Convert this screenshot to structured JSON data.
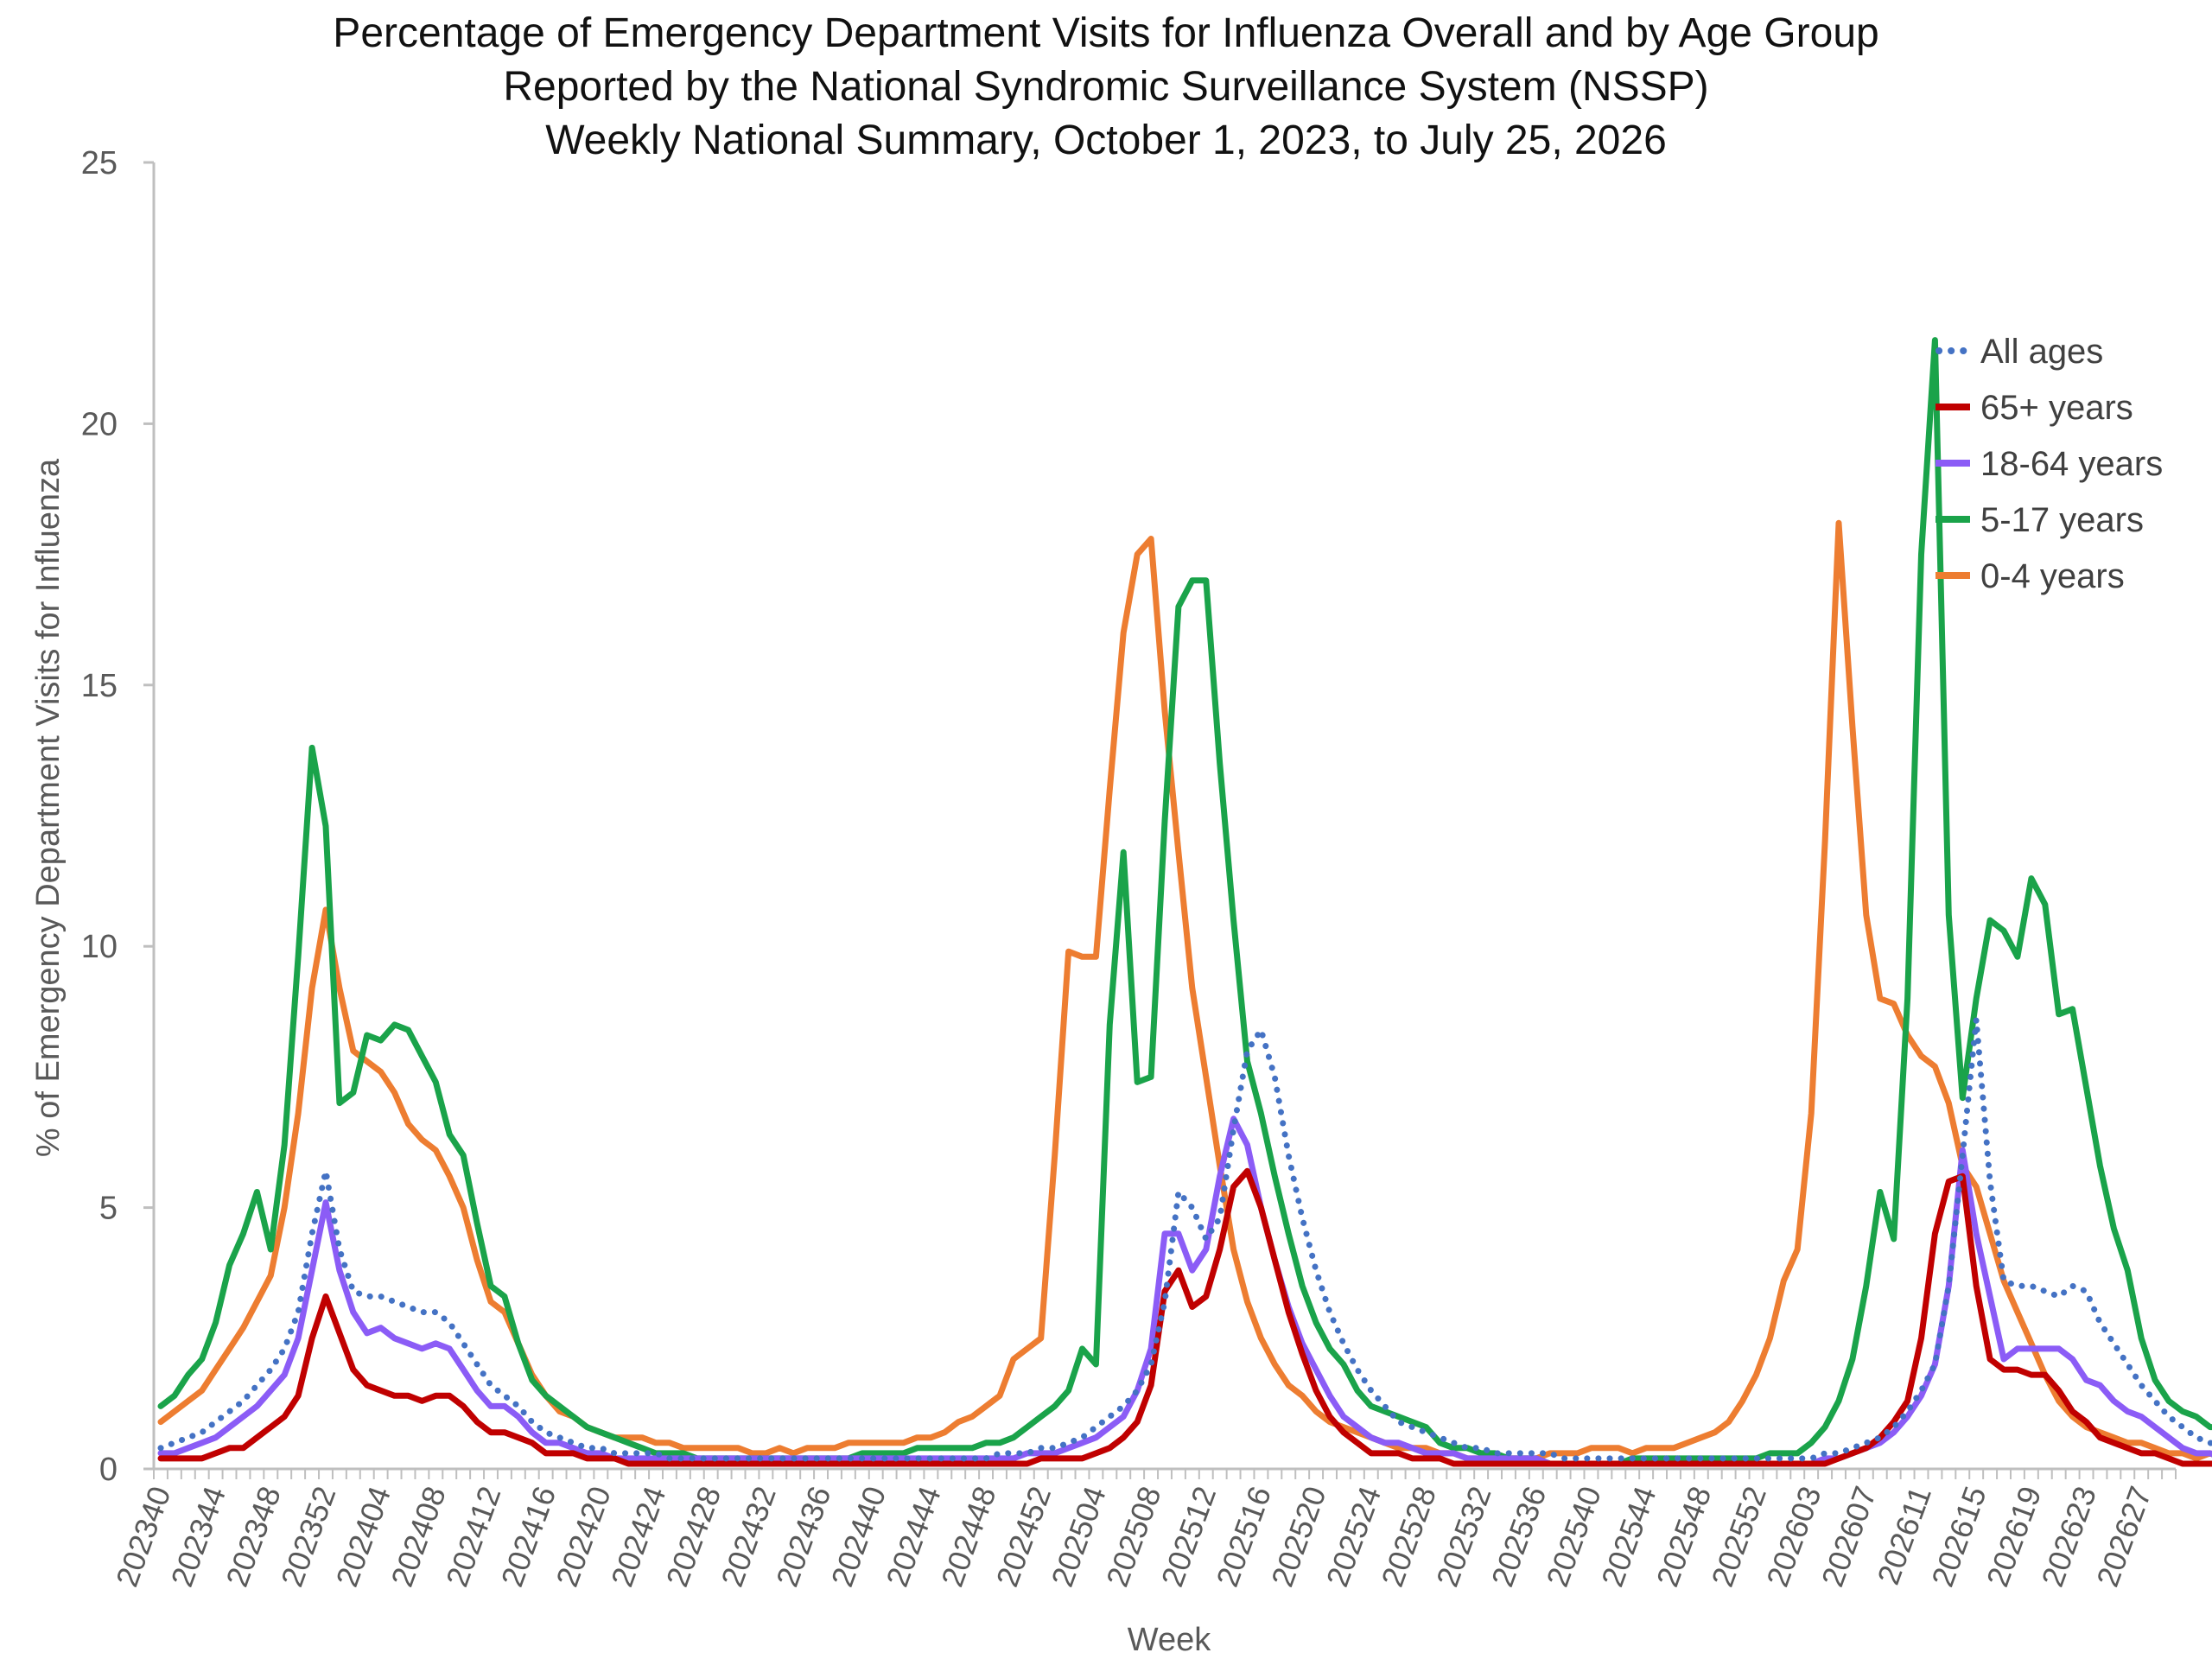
{
  "chart_data": {
    "type": "line",
    "title": [
      "Percentage of Emergency Department Visits for Influenza Overall and by Age Group",
      "Reported by the National Syndromic Surveillance System (NSSP)",
      "Weekly National Summary, October 1, 2023, to July 25, 2026"
    ],
    "xlabel": "Week",
    "ylabel": "% of Emergency Department Visits for Influenza",
    "ylim": [
      0,
      25
    ],
    "yticks": [
      0,
      5,
      10,
      15,
      20,
      25
    ],
    "grid": false,
    "legend_position": "top-right",
    "x_tick_labels": [
      "202340",
      "202344",
      "202348",
      "202352",
      "202404",
      "202408",
      "202412",
      "202416",
      "202420",
      "202424",
      "202428",
      "202432",
      "202436",
      "202440",
      "202444",
      "202448",
      "202452",
      "202504",
      "202508",
      "202512",
      "202516",
      "202520",
      "202524",
      "202528",
      "202532",
      "202536",
      "202540",
      "202544",
      "202548",
      "202552",
      "202603",
      "202607",
      "202611",
      "202615",
      "202619",
      "202623",
      "202627"
    ],
    "x_tick_every": 4,
    "n_weeks": 147,
    "series": [
      {
        "name": "All ages",
        "color": "#4472C4",
        "style": "dotted",
        "values": [
          0.4,
          0.5,
          0.6,
          0.7,
          0.9,
          1.1,
          1.3,
          1.6,
          1.9,
          2.3,
          3.0,
          4.5,
          5.7,
          4.2,
          3.4,
          3.3,
          3.3,
          3.2,
          3.1,
          3.0,
          3.0,
          2.8,
          2.4,
          2.0,
          1.6,
          1.4,
          1.2,
          0.9,
          0.7,
          0.6,
          0.5,
          0.4,
          0.4,
          0.3,
          0.3,
          0.3,
          0.3,
          0.2,
          0.2,
          0.2,
          0.2,
          0.2,
          0.2,
          0.2,
          0.2,
          0.2,
          0.2,
          0.2,
          0.2,
          0.2,
          0.2,
          0.2,
          0.2,
          0.2,
          0.2,
          0.2,
          0.2,
          0.2,
          0.2,
          0.2,
          0.2,
          0.3,
          0.3,
          0.3,
          0.4,
          0.4,
          0.5,
          0.6,
          0.8,
          1.0,
          1.2,
          1.5,
          2.0,
          3.2,
          5.3,
          5.0,
          4.4,
          4.8,
          6.5,
          8.0,
          8.4,
          7.5,
          6.0,
          4.8,
          3.8,
          3.0,
          2.4,
          1.9,
          1.5,
          1.2,
          0.9,
          0.8,
          0.7,
          0.6,
          0.5,
          0.4,
          0.4,
          0.3,
          0.3,
          0.3,
          0.3,
          0.3,
          0.2,
          0.2,
          0.2,
          0.2,
          0.2,
          0.2,
          0.2,
          0.2,
          0.2,
          0.2,
          0.2,
          0.2,
          0.2,
          0.2,
          0.2,
          0.2,
          0.2,
          0.2,
          0.2,
          0.3,
          0.3,
          0.4,
          0.5,
          0.6,
          0.8,
          1.1,
          1.5,
          2.0,
          3.5,
          6.0,
          8.6,
          5.5,
          3.6,
          3.5,
          3.5,
          3.4,
          3.3,
          3.5,
          3.4,
          2.8,
          2.4,
          2.0,
          1.6,
          1.3,
          1.0,
          0.8,
          0.6,
          0.5,
          0.4,
          0.3,
          0.3,
          0.2,
          0.2,
          0.1,
          0.1,
          0.1,
          0.1
        ]
      },
      {
        "name": "65+ years",
        "color": "#C00000",
        "style": "solid",
        "values": [
          0.2,
          0.2,
          0.2,
          0.2,
          0.3,
          0.4,
          0.4,
          0.6,
          0.8,
          1.0,
          1.4,
          2.5,
          3.3,
          2.6,
          1.9,
          1.6,
          1.5,
          1.4,
          1.4,
          1.3,
          1.4,
          1.4,
          1.2,
          0.9,
          0.7,
          0.7,
          0.6,
          0.5,
          0.3,
          0.3,
          0.3,
          0.2,
          0.2,
          0.2,
          0.1,
          0.1,
          0.1,
          0.1,
          0.1,
          0.1,
          0.1,
          0.1,
          0.1,
          0.1,
          0.1,
          0.1,
          0.1,
          0.1,
          0.1,
          0.1,
          0.1,
          0.1,
          0.1,
          0.1,
          0.1,
          0.1,
          0.1,
          0.1,
          0.1,
          0.1,
          0.1,
          0.1,
          0.1,
          0.1,
          0.2,
          0.2,
          0.2,
          0.2,
          0.3,
          0.4,
          0.6,
          0.9,
          1.6,
          3.4,
          3.8,
          3.1,
          3.3,
          4.2,
          5.4,
          5.7,
          5.0,
          4.0,
          3.0,
          2.2,
          1.5,
          1.0,
          0.7,
          0.5,
          0.3,
          0.3,
          0.3,
          0.2,
          0.2,
          0.2,
          0.1,
          0.1,
          0.1,
          0.1,
          0.1,
          0.1,
          0.1,
          0.1,
          0.1,
          0.1,
          0.1,
          0.1,
          0.1,
          0.1,
          0.1,
          0.1,
          0.1,
          0.1,
          0.1,
          0.1,
          0.1,
          0.1,
          0.1,
          0.1,
          0.1,
          0.1,
          0.1,
          0.1,
          0.2,
          0.3,
          0.4,
          0.6,
          0.9,
          1.3,
          2.5,
          4.5,
          5.5,
          5.6,
          3.5,
          2.1,
          1.9,
          1.9,
          1.8,
          1.8,
          1.5,
          1.1,
          0.9,
          0.6,
          0.5,
          0.4,
          0.3,
          0.3,
          0.2,
          0.1,
          0.1,
          0.1,
          0.1,
          0.1,
          0.1,
          0.1,
          0.1,
          0.1
        ]
      },
      {
        "name": "18-64 years",
        "color": "#8B5CF6",
        "style": "solid",
        "values": [
          0.3,
          0.3,
          0.4,
          0.5,
          0.6,
          0.8,
          1.0,
          1.2,
          1.5,
          1.8,
          2.5,
          3.8,
          5.1,
          3.8,
          3.0,
          2.6,
          2.7,
          2.5,
          2.4,
          2.3,
          2.4,
          2.3,
          1.9,
          1.5,
          1.2,
          1.2,
          1.0,
          0.7,
          0.5,
          0.5,
          0.4,
          0.3,
          0.3,
          0.2,
          0.2,
          0.2,
          0.2,
          0.2,
          0.2,
          0.2,
          0.2,
          0.2,
          0.2,
          0.2,
          0.2,
          0.2,
          0.2,
          0.2,
          0.2,
          0.2,
          0.2,
          0.2,
          0.2,
          0.2,
          0.2,
          0.2,
          0.2,
          0.2,
          0.2,
          0.2,
          0.2,
          0.2,
          0.2,
          0.3,
          0.3,
          0.3,
          0.4,
          0.5,
          0.6,
          0.8,
          1.0,
          1.5,
          2.3,
          4.5,
          4.5,
          3.8,
          4.2,
          5.6,
          6.7,
          6.2,
          5.0,
          4.0,
          3.1,
          2.4,
          1.9,
          1.4,
          1.0,
          0.8,
          0.6,
          0.5,
          0.5,
          0.4,
          0.3,
          0.3,
          0.3,
          0.2,
          0.2,
          0.2,
          0.2,
          0.2,
          0.2,
          0.1,
          0.1,
          0.1,
          0.1,
          0.1,
          0.1,
          0.1,
          0.1,
          0.1,
          0.1,
          0.1,
          0.1,
          0.1,
          0.1,
          0.1,
          0.1,
          0.1,
          0.1,
          0.1,
          0.1,
          0.2,
          0.2,
          0.3,
          0.4,
          0.5,
          0.7,
          1.0,
          1.4,
          2.0,
          3.5,
          6.1,
          4.5,
          3.3,
          2.1,
          2.3,
          2.3,
          2.3,
          2.3,
          2.1,
          1.7,
          1.6,
          1.3,
          1.1,
          1.0,
          0.8,
          0.6,
          0.4,
          0.3,
          0.3,
          0.2,
          0.2,
          0.2,
          0.2,
          0.1,
          0.1,
          0.1,
          0.1,
          0.1
        ]
      },
      {
        "name": "5-17 years",
        "color": "#1AA34A",
        "style": "solid",
        "values": [
          1.2,
          1.4,
          1.8,
          2.1,
          2.8,
          3.9,
          4.5,
          5.3,
          4.2,
          6.2,
          9.8,
          13.8,
          12.3,
          7.0,
          7.2,
          8.3,
          8.2,
          8.5,
          8.4,
          7.9,
          7.4,
          6.4,
          6.0,
          4.7,
          3.5,
          3.3,
          2.4,
          1.7,
          1.4,
          1.2,
          1.0,
          0.8,
          0.7,
          0.6,
          0.5,
          0.4,
          0.3,
          0.3,
          0.3,
          0.2,
          0.2,
          0.2,
          0.2,
          0.2,
          0.2,
          0.2,
          0.2,
          0.2,
          0.2,
          0.2,
          0.2,
          0.3,
          0.3,
          0.3,
          0.3,
          0.4,
          0.4,
          0.4,
          0.4,
          0.4,
          0.5,
          0.5,
          0.6,
          0.8,
          1.0,
          1.2,
          1.5,
          2.3,
          2.0,
          8.5,
          11.8,
          7.4,
          7.5,
          12.4,
          16.5,
          17.0,
          17.0,
          13.5,
          10.5,
          7.8,
          6.8,
          5.6,
          4.5,
          3.5,
          2.8,
          2.3,
          2.0,
          1.5,
          1.2,
          1.1,
          1.0,
          0.9,
          0.8,
          0.5,
          0.4,
          0.4,
          0.3,
          0.3,
          0.2,
          0.2,
          0.2,
          0.1,
          0.1,
          0.1,
          0.1,
          0.1,
          0.1,
          0.2,
          0.2,
          0.2,
          0.2,
          0.2,
          0.2,
          0.2,
          0.2,
          0.2,
          0.2,
          0.3,
          0.3,
          0.3,
          0.5,
          0.8,
          1.3,
          2.1,
          3.5,
          5.3,
          4.4,
          9.0,
          17.5,
          21.6,
          10.6,
          7.1,
          9.0,
          10.5,
          10.3,
          9.8,
          11.3,
          10.8,
          8.7,
          8.8,
          7.3,
          5.8,
          4.6,
          3.8,
          2.5,
          1.7,
          1.3,
          1.1,
          1.0,
          0.8,
          0.8,
          0.7,
          0.5,
          0.3,
          0.2,
          0.1,
          0.1,
          0.1,
          0.1
        ]
      },
      {
        "name": "0-4 years",
        "color": "#ED7D31",
        "style": "solid",
        "values": [
          0.9,
          1.1,
          1.3,
          1.5,
          1.9,
          2.3,
          2.7,
          3.2,
          3.7,
          5.0,
          6.8,
          9.2,
          10.7,
          9.2,
          8.0,
          7.8,
          7.6,
          7.2,
          6.6,
          6.3,
          6.1,
          5.6,
          5.0,
          4.0,
          3.2,
          3.0,
          2.4,
          1.8,
          1.4,
          1.1,
          1.0,
          0.8,
          0.7,
          0.6,
          0.6,
          0.6,
          0.5,
          0.5,
          0.4,
          0.4,
          0.4,
          0.4,
          0.4,
          0.3,
          0.3,
          0.4,
          0.3,
          0.4,
          0.4,
          0.4,
          0.5,
          0.5,
          0.5,
          0.5,
          0.5,
          0.6,
          0.6,
          0.7,
          0.9,
          1.0,
          1.2,
          1.4,
          2.1,
          2.3,
          2.5,
          6.0,
          9.9,
          9.8,
          9.8,
          13.0,
          16.0,
          17.5,
          17.8,
          14.5,
          11.8,
          9.2,
          7.5,
          5.8,
          4.2,
          3.2,
          2.5,
          2.0,
          1.6,
          1.4,
          1.1,
          0.9,
          0.8,
          0.7,
          0.6,
          0.5,
          0.4,
          0.4,
          0.4,
          0.3,
          0.3,
          0.2,
          0.2,
          0.2,
          0.2,
          0.2,
          0.2,
          0.3,
          0.3,
          0.3,
          0.4,
          0.4,
          0.4,
          0.3,
          0.4,
          0.4,
          0.4,
          0.5,
          0.6,
          0.7,
          0.9,
          1.3,
          1.8,
          2.5,
          3.6,
          4.2,
          6.8,
          12.0,
          18.1,
          14.2,
          10.6,
          9.0,
          8.9,
          8.3,
          7.9,
          7.7,
          7.0,
          5.8,
          5.4,
          4.5,
          3.6,
          3.0,
          2.4,
          1.8,
          1.3,
          1.0,
          0.8,
          0.7,
          0.6,
          0.5,
          0.5,
          0.4,
          0.3,
          0.3,
          0.2,
          0.3,
          0.2,
          0.2,
          0.2
        ]
      }
    ]
  }
}
